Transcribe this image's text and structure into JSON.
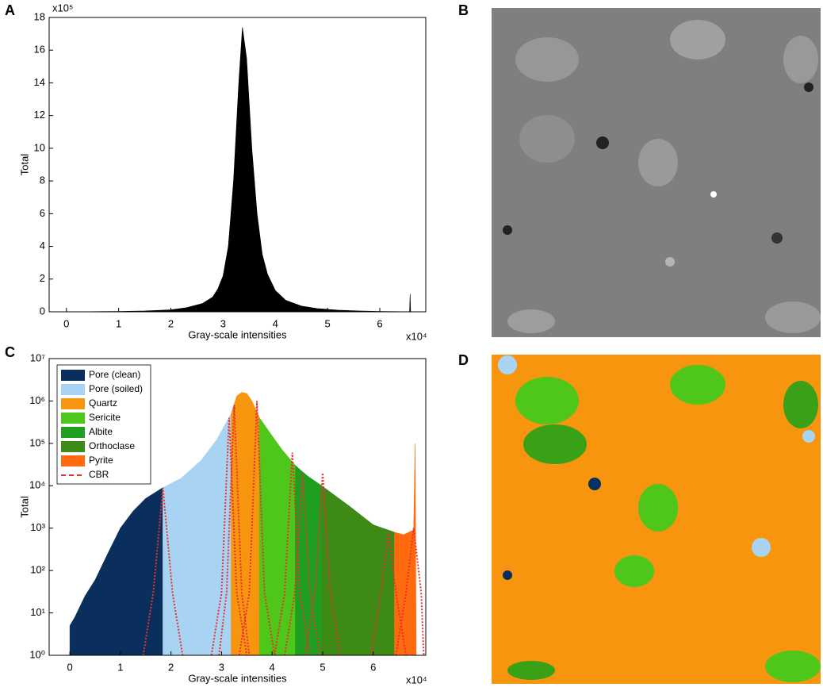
{
  "panel_labels": [
    "A",
    "B",
    "C",
    "D"
  ],
  "chart_data": [
    {
      "type": "area",
      "xlabel": "Gray-scale intensities",
      "ylabel": "Total",
      "x_unit_label": "x10⁴",
      "y_unit_label": "x10⁵",
      "xlim": [
        -0.33,
        6.88
      ],
      "xticks": [
        0,
        1,
        2,
        3,
        4,
        5,
        6
      ],
      "ylim": [
        0,
        18
      ],
      "yticks": [
        0,
        2,
        4,
        6,
        8,
        10,
        12,
        14,
        16,
        18
      ],
      "log_y": false,
      "grid": false,
      "series": [
        {
          "color": "#000000",
          "x": [
            0,
            1,
            1.5,
            2,
            2.3,
            2.6,
            2.8,
            2.9,
            3.0,
            3.1,
            3.2,
            3.3,
            3.37,
            3.45,
            3.55,
            3.65,
            3.75,
            3.85,
            4.0,
            4.2,
            4.5,
            4.8,
            5.2,
            5.6,
            6.0,
            6.5,
            6.57,
            6.58,
            6.59
          ],
          "values": [
            0,
            0.02,
            0.05,
            0.12,
            0.25,
            0.5,
            0.9,
            1.4,
            2.2,
            4,
            8,
            14,
            17.4,
            15.5,
            10,
            6,
            3.5,
            2.3,
            1.3,
            0.7,
            0.35,
            0.2,
            0.1,
            0.05,
            0.02,
            0.01,
            0.01,
            1.1,
            0
          ]
        }
      ]
    },
    {
      "type": "area",
      "xlabel": "Gray-scale intensities",
      "ylabel": "Total",
      "x_unit_label": "x10⁴",
      "xlim": [
        -0.41,
        7.04
      ],
      "xticks": [
        0,
        1,
        2,
        3,
        4,
        5,
        6
      ],
      "ylim": [
        1,
        10000000
      ],
      "log_y": true,
      "grid": false,
      "yticks": [
        {
          "value": 1,
          "label": "10⁰"
        },
        {
          "value": 10,
          "label": "10¹"
        },
        {
          "value": 100,
          "label": "10²"
        },
        {
          "value": 1000,
          "label": "10³"
        },
        {
          "value": 10000,
          "label": "10⁴"
        },
        {
          "value": 100000,
          "label": "10⁵"
        },
        {
          "value": 1000000,
          "label": "10⁶"
        },
        {
          "value": 10000000,
          "label": "10⁷"
        }
      ],
      "legend": "upper left",
      "series": [
        {
          "name": "Pore (clean)",
          "color": "#0b2f5c",
          "x": [
            0,
            0.1,
            0.3,
            0.5,
            0.75,
            1.0,
            1.25,
            1.5,
            1.84
          ],
          "values": [
            5,
            8,
            25,
            60,
            250,
            1000,
            2500,
            5000,
            9000
          ]
        },
        {
          "name": "Pore (soiled)",
          "color": "#a9d3f2",
          "x": [
            1.84,
            2.2,
            2.6,
            2.9,
            3.19
          ],
          "values": [
            9000,
            15000,
            40000,
            120000,
            500000
          ]
        },
        {
          "name": "Quartz",
          "color": "#f7950f",
          "x": [
            3.19,
            3.3,
            3.4,
            3.5,
            3.6,
            3.75
          ],
          "values": [
            500000,
            1300000,
            1600000,
            1500000,
            1000000,
            400000
          ]
        },
        {
          "name": "Sericite",
          "color": "#4fc61a",
          "x": [
            3.75,
            4.0,
            4.2,
            4.46
          ],
          "values": [
            400000,
            150000,
            70000,
            30000
          ]
        },
        {
          "name": "Albite",
          "color": "#1f9f1f",
          "x": [
            4.46,
            4.7,
            4.98
          ],
          "values": [
            30000,
            17000,
            10000
          ]
        },
        {
          "name": "Orthoclase",
          "color": "#3d8a17",
          "x": [
            4.98,
            5.5,
            6.0,
            6.42
          ],
          "values": [
            10000,
            3500,
            1200,
            800
          ]
        },
        {
          "name": "Pyrite",
          "color": "#ff6a0e",
          "x": [
            6.42,
            6.6,
            6.8,
            6.83,
            6.85
          ],
          "values": [
            800,
            700,
            900,
            100000,
            1
          ]
        }
      ],
      "cbr": {
        "name": "CBR",
        "color": "#e8312f",
        "curves": [
          {
            "x": [
              1.45,
              1.65,
              1.84,
              2.03,
              2.23
            ],
            "values": [
              1,
              30,
              9000,
              30,
              1
            ]
          },
          {
            "x": [
              2.8,
              3.0,
              3.15,
              3.3,
              3.5
            ],
            "values": [
              1,
              30,
              400000,
              30,
              1
            ]
          },
          {
            "x": [
              2.95,
              3.1,
              3.25,
              3.4,
              3.55
            ],
            "values": [
              1,
              30,
              800000,
              30,
              1
            ]
          },
          {
            "x": [
              3.35,
              3.55,
              3.7,
              3.85,
              4.05
            ],
            "values": [
              1,
              30,
              1000000,
              30,
              1
            ]
          },
          {
            "x": [
              4.05,
              4.25,
              4.4,
              4.55,
              4.75
            ],
            "values": [
              1,
              30,
              60000,
              30,
              1
            ]
          },
          {
            "x": [
              4.25,
              4.45,
              4.6,
              4.75,
              4.95
            ],
            "values": [
              1,
              30,
              20000,
              30,
              1
            ]
          },
          {
            "x": [
              4.65,
              4.85,
              5.0,
              5.15,
              5.35
            ],
            "values": [
              1,
              30,
              20000,
              30,
              1
            ]
          },
          {
            "x": [
              5.95,
              6.15,
              6.3,
              6.45,
              6.65
            ],
            "values": [
              1,
              30,
              800,
              30,
              1
            ]
          },
          {
            "x": [
              6.45,
              6.65,
              6.8,
              6.95,
              7.0
            ],
            "values": [
              1,
              30,
              1000,
              30,
              1
            ]
          }
        ]
      }
    }
  ]
}
